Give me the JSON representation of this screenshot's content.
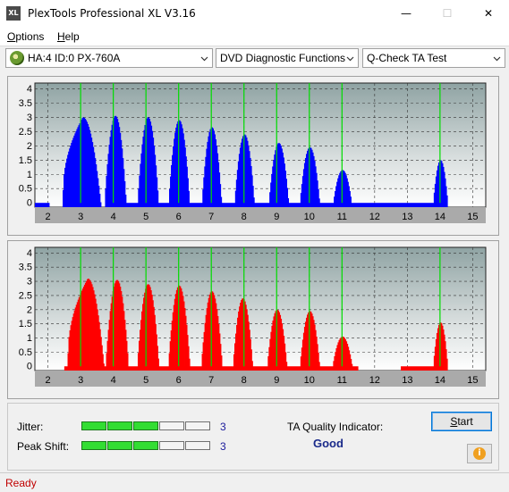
{
  "window": {
    "title": "PlexTools Professional XL V3.16",
    "icon_text": "XL"
  },
  "controls": {
    "minimize": "—",
    "maximize": "☐",
    "close": "✕"
  },
  "menu": [
    {
      "label": "Options",
      "accel": "O",
      "rest": "ptions"
    },
    {
      "label": "Help",
      "accel": "H",
      "rest": "elp"
    }
  ],
  "toolbar": {
    "drive": "HA:4 ID:0  PX-760A",
    "function": "DVD Diagnostic Functions",
    "test": "Q-Check TA Test"
  },
  "chart_data": [
    {
      "type": "bar",
      "name": "Jitter",
      "color": "#0000ff",
      "x_ticks": [
        "2",
        "3",
        "4",
        "5",
        "6",
        "7",
        "8",
        "9",
        "10",
        "11",
        "12",
        "13",
        "14",
        "15"
      ],
      "y_ticks": [
        "0",
        "0.5",
        "1",
        "1.5",
        "2",
        "2.5",
        "3",
        "3.5",
        "4"
      ],
      "xlim": [
        1.6,
        15.4
      ],
      "ylim": [
        -0.15,
        4.2
      ],
      "markers": [
        3,
        4,
        5,
        6,
        7,
        8,
        9,
        10,
        11,
        14
      ],
      "marker_color": "#00dd00",
      "baseline": [
        [
          1.6,
          2.05
        ],
        [
          4.0,
          14.2
        ]
      ],
      "peaks": [
        {
          "c": 3.05,
          "h": 3.0,
          "w": 0.55,
          "lo": 2.45
        },
        {
          "c": 4.05,
          "h": 3.05,
          "w": 0.33
        },
        {
          "c": 5.05,
          "h": 3.0,
          "w": 0.32
        },
        {
          "c": 6.0,
          "h": 2.9,
          "w": 0.32
        },
        {
          "c": 7.0,
          "h": 2.65,
          "w": 0.3
        },
        {
          "c": 8.0,
          "h": 2.4,
          "w": 0.3
        },
        {
          "c": 9.05,
          "h": 2.1,
          "w": 0.3
        },
        {
          "c": 10.0,
          "h": 1.95,
          "w": 0.3
        },
        {
          "c": 11.0,
          "h": 1.15,
          "w": 0.28
        },
        {
          "c": 14.0,
          "h": 1.5,
          "w": 0.22
        }
      ]
    },
    {
      "type": "bar",
      "name": "Peak Shift",
      "color": "#ff0000",
      "x_ticks": [
        "2",
        "3",
        "4",
        "5",
        "6",
        "7",
        "8",
        "9",
        "10",
        "11",
        "12",
        "13",
        "14",
        "15"
      ],
      "y_ticks": [
        "0",
        "0.5",
        "1",
        "1.5",
        "2",
        "2.5",
        "3",
        "3.5",
        "4"
      ],
      "xlim": [
        1.6,
        15.4
      ],
      "ylim": [
        -0.15,
        4.2
      ],
      "markers": [
        3,
        4,
        5,
        6,
        7,
        8,
        9,
        10,
        11,
        14
      ],
      "marker_color": "#00dd00",
      "baseline": [
        [
          2.5,
          11.5
        ],
        [
          12.8,
          14.2
        ]
      ],
      "peaks": [
        {
          "c": 3.2,
          "h": 3.1,
          "w": 0.5,
          "lo": 2.6
        },
        {
          "c": 4.1,
          "h": 3.05,
          "w": 0.35
        },
        {
          "c": 5.05,
          "h": 2.9,
          "w": 0.33
        },
        {
          "c": 6.0,
          "h": 2.85,
          "w": 0.33
        },
        {
          "c": 7.0,
          "h": 2.65,
          "w": 0.32
        },
        {
          "c": 7.95,
          "h": 2.4,
          "w": 0.3
        },
        {
          "c": 9.0,
          "h": 2.0,
          "w": 0.3
        },
        {
          "c": 10.0,
          "h": 1.95,
          "w": 0.3
        },
        {
          "c": 11.0,
          "h": 1.05,
          "w": 0.3
        },
        {
          "c": 14.0,
          "h": 1.55,
          "w": 0.22
        }
      ]
    }
  ],
  "results": {
    "jitter_label": "Jitter:",
    "jitter_value": "3",
    "jitter_level": 3,
    "peak_shift_label": "Peak Shift:",
    "peak_shift_value": "3",
    "peak_shift_level": 3,
    "meter_cells": 5,
    "ta_label": "TA Quality Indicator:",
    "ta_value": "Good",
    "start_label": "Start",
    "start_accel": "S",
    "start_rest": "tart"
  },
  "status": {
    "text": "Ready"
  }
}
